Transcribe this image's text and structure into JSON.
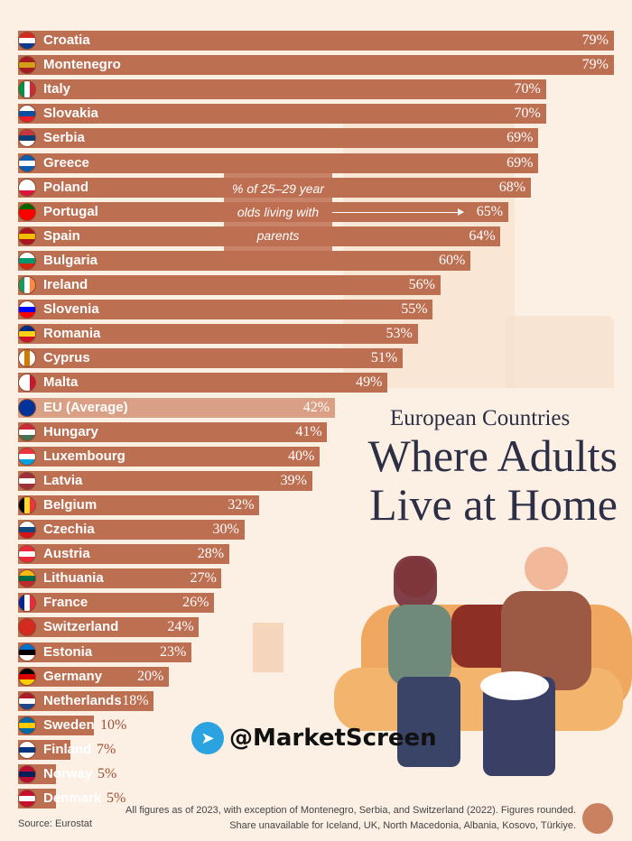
{
  "chart_data": {
    "type": "bar",
    "orientation": "horizontal",
    "subtitle": "European Countries",
    "title": "Where Adults Live at Home",
    "annotation": "% of 25–29 year olds living with parents",
    "unit": "%",
    "categories": [
      "Croatia",
      "Montenegro",
      "Italy",
      "Slovakia",
      "Serbia",
      "Greece",
      "Poland",
      "Portugal",
      "Spain",
      "Bulgaria",
      "Ireland",
      "Slovenia",
      "Romania",
      "Cyprus",
      "Malta",
      "EU (Average)",
      "Hungary",
      "Luxembourg",
      "Latvia",
      "Belgium",
      "Czechia",
      "Austria",
      "Lithuania",
      "France",
      "Switzerland",
      "Estonia",
      "Germany",
      "Netherlands",
      "Sweden",
      "Finland",
      "Norway",
      "Denmark"
    ],
    "values": [
      79,
      79,
      70,
      70,
      69,
      69,
      68,
      65,
      64,
      60,
      56,
      55,
      53,
      51,
      49,
      42,
      41,
      40,
      39,
      32,
      30,
      28,
      27,
      26,
      24,
      23,
      20,
      18,
      10,
      7,
      5,
      5
    ],
    "highlight": "EU (Average)",
    "colors": {
      "bar": "#bd6f52",
      "highlight": "#d9a085",
      "title": "#2c2f45",
      "background": "#fcefe4"
    }
  },
  "flags": [
    "#d52b1e|#fff|#0b3a8c",
    "#a51c22|#d4a017|#a51c22",
    "#009246|#fff|#ce2b37",
    "#fff|#0b4ea2|#ee1c25",
    "#c6363c|#0c4076|#fff",
    "#0d5eaf|#fff|#0d5eaf",
    "#fff|#fff|#dc143c",
    "#006600|#ff0000|#ff0000",
    "#aa151b|#f1bf00|#aa151b",
    "#fff|#00966e|#d62612",
    "#169b62|#fff|#ff883e",
    "#fff|#0000ff|#ff0000",
    "#002b7f|#fcd116|#ce1126",
    "#fff|#d57800|#fff",
    "#fff|#fff|#cf142b",
    "#003399|#003399|#003399",
    "#ce2939|#fff|#477050",
    "#ef3340|#fff|#00a3e0",
    "#9e3039|#fff|#9e3039",
    "#000|#fdda24|#ef3340",
    "#fff|#11457e|#d7141a",
    "#ed2939|#fff|#ed2939",
    "#fdb913|#006a44|#c1272d",
    "#002395|#fff|#ed2939",
    "#d52b1e|#d52b1e|#d52b1e",
    "#0072ce|#000|#fff",
    "#000|#dd0000|#ffce00",
    "#ae1c28|#fff|#21468b",
    "#006aa7|#fecc00|#006aa7",
    "#fff|#003580|#fff",
    "#ba0c2f|#00205b|#ba0c2f",
    "#c8102e|#fff|#c8102e"
  ],
  "watermark": "@MarketScreen",
  "footnote": {
    "line1": "All figures as of 2023, with exception of Montenegro, Serbia, and Switzerland (2022). Figures rounded.",
    "line2": "Share unavailable for Iceland, UK, North Macedonia, Albania, Kosovo, Türkiye."
  },
  "source": "Source: Eurostat"
}
